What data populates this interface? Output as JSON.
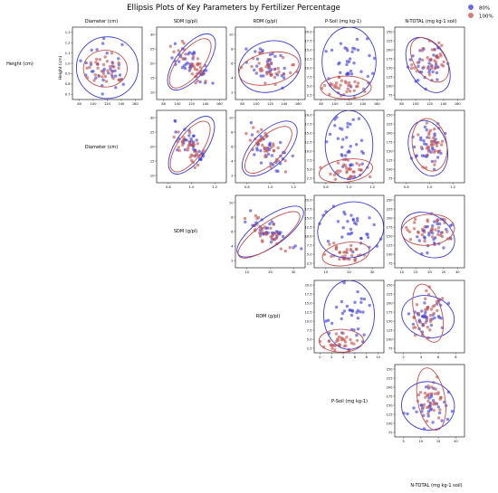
{
  "chart_data": {
    "type": "scatter",
    "title": "Ellipsis Plots of Key Parameters by Fertilizer Percentage",
    "variables": [
      "Height (cm)",
      "Diameter (cm)",
      "SDM (g/pl)",
      "RDM (g/pl)",
      "P-Soil (mg kg-1)",
      "N-TOTAL (mg kg-1 soil)"
    ],
    "legend": {
      "position": "top-right",
      "entries": [
        {
          "name": "80%",
          "color": "#3b3bd6"
        },
        {
          "name": "100%",
          "color": "#c0504d"
        }
      ]
    },
    "colors": {
      "80%": "#3b3bd6",
      "100%": "#c0504d"
    },
    "panels": [
      {
        "row": 0,
        "col": 1,
        "x": "Diameter (cm)",
        "y": "Height (cm)",
        "xlim": [
          0.6,
          1.3
        ],
        "ylim": [
          0.65,
          1.4
        ],
        "xticks": [
          "80",
          "100",
          "120",
          "140",
          "160"
        ],
        "yticks": [
          "0.7",
          "0.8",
          "0.9",
          "1.0",
          "1.1",
          "1.2",
          "1.3"
        ],
        "ellipses": [
          {
            "series": "80%",
            "cx": 0.95,
            "cy": 0.98,
            "rx": 0.31,
            "ry": 0.32,
            "rot": 0
          },
          {
            "series": "100%",
            "cx": 0.93,
            "cy": 0.97,
            "rx": 0.22,
            "ry": 0.19,
            "rot": 0
          }
        ]
      },
      {
        "row": 0,
        "col": 2,
        "x": "SDM (g/pl)",
        "y": "Height (cm)",
        "xlim": [
          5,
          32
        ],
        "ylim": [
          5,
          31
        ],
        "xticks": [
          "80",
          "100",
          "120",
          "140",
          "160"
        ],
        "yticks": [
          "10",
          "15",
          "20",
          "25",
          "30"
        ],
        "ellipses": [
          {
            "series": "80%",
            "cx": 18.5,
            "cy": 18.5,
            "rx": 13,
            "ry": 5.5,
            "rot": -52
          },
          {
            "series": "100%",
            "cx": 18,
            "cy": 18,
            "rx": 11.5,
            "ry": 4.5,
            "rot": -52
          }
        ]
      },
      {
        "row": 0,
        "col": 3,
        "x": "RDM (g/pl)",
        "y": "Height (cm)",
        "xlim": [
          0,
          11
        ],
        "ylim": [
          0,
          11
        ],
        "xticks": [
          "80",
          "100",
          "120",
          "140",
          "160"
        ],
        "yticks": [
          "2",
          "4",
          "6",
          "8",
          "10"
        ],
        "ellipses": [
          {
            "series": "80%",
            "cx": 5.4,
            "cy": 5.0,
            "rx": 5.0,
            "ry": 3.8,
            "rot": -20
          },
          {
            "series": "100%",
            "cx": 5.3,
            "cy": 4.7,
            "rx": 4.8,
            "ry": 2.4,
            "rot": -12
          }
        ]
      },
      {
        "row": 0,
        "col": 4,
        "x": "P-Soil (mg kg-1)",
        "y": "Height (cm)",
        "xlim": [
          0,
          22
        ],
        "ylim": [
          1,
          22
        ],
        "xticks": [
          "80",
          "100",
          "120",
          "140",
          "160"
        ],
        "yticks": [
          "2.5",
          "5.0",
          "7.5",
          "10.0",
          "12.5",
          "15.0",
          "17.5",
          "20.0"
        ],
        "ellipses": [
          {
            "series": "80%",
            "cx": 11,
            "cy": 12,
            "rx": 8.5,
            "ry": 10,
            "rot": 0
          },
          {
            "series": "100%",
            "cx": 10,
            "cy": 4.5,
            "rx": 8,
            "ry": 3.3,
            "rot": 0
          }
        ]
      },
      {
        "row": 0,
        "col": 5,
        "x": "N-TOTAL (mg kg-1 soil)",
        "y": "Height (cm)",
        "xlim": [
          60,
          270
        ],
        "ylim": [
          60,
          270
        ],
        "xticks": [
          "80",
          "100",
          "120",
          "140",
          "160"
        ],
        "yticks": [
          "75",
          "100",
          "125",
          "150",
          "175",
          "200",
          "225",
          "250"
        ],
        "ellipses": [
          {
            "series": "80%",
            "cx": 160,
            "cy": 160,
            "rx": 90,
            "ry": 55,
            "rot": 60
          },
          {
            "series": "100%",
            "cx": 165,
            "cy": 175,
            "rx": 75,
            "ry": 45,
            "rot": 55
          }
        ]
      },
      {
        "row": 1,
        "col": 2,
        "x": "SDM (g/pl)",
        "y": "Diameter (cm)",
        "xlim": [
          5,
          32
        ],
        "ylim": [
          5,
          31
        ],
        "xticks": [
          "0.8",
          "1.0",
          "1.2"
        ],
        "yticks": [
          "10",
          "15",
          "20",
          "25",
          "30"
        ],
        "ellipses": [
          {
            "series": "80%",
            "cx": 18.5,
            "cy": 18.5,
            "rx": 13,
            "ry": 5.5,
            "rot": -55
          },
          {
            "series": "100%",
            "cx": 18,
            "cy": 18,
            "rx": 11.5,
            "ry": 4.5,
            "rot": -55
          }
        ]
      },
      {
        "row": 1,
        "col": 3,
        "x": "RDM (g/pl)",
        "y": "Diameter (cm)",
        "xlim": [
          0,
          11
        ],
        "ylim": [
          0,
          11
        ],
        "xticks": [
          "0.8",
          "1.0",
          "1.2"
        ],
        "yticks": [
          "2",
          "4",
          "6",
          "8",
          "10"
        ],
        "ellipses": [
          {
            "series": "80%",
            "cx": 5.4,
            "cy": 5.2,
            "rx": 5.5,
            "ry": 2.6,
            "rot": -45
          },
          {
            "series": "100%",
            "cx": 5.2,
            "cy": 5.0,
            "rx": 4.8,
            "ry": 2.0,
            "rot": -45
          }
        ]
      },
      {
        "row": 1,
        "col": 4,
        "x": "P-Soil (mg kg-1)",
        "y": "Diameter (cm)",
        "xlim": [
          0,
          22
        ],
        "ylim": [
          1,
          22
        ],
        "xticks": [
          "0.8",
          "1.0",
          "1.2"
        ],
        "yticks": [
          "2.5",
          "5.0",
          "7.5",
          "10.0",
          "12.5",
          "15.0",
          "17.5",
          "20.0"
        ],
        "ellipses": [
          {
            "series": "80%",
            "cx": 11,
            "cy": 12,
            "rx": 7.5,
            "ry": 10,
            "rot": 0
          },
          {
            "series": "100%",
            "cx": 10,
            "cy": 4.5,
            "rx": 8.5,
            "ry": 3.3,
            "rot": -8
          }
        ]
      },
      {
        "row": 1,
        "col": 5,
        "x": "N-TOTAL (mg kg-1 soil)",
        "y": "Diameter (cm)",
        "xlim": [
          60,
          270
        ],
        "ylim": [
          60,
          270
        ],
        "xticks": [
          "0.8",
          "1.0",
          "1.2"
        ],
        "yticks": [
          "75",
          "100",
          "125",
          "150",
          "175",
          "200",
          "225",
          "250"
        ],
        "ellipses": [
          {
            "series": "80%",
            "cx": 160,
            "cy": 160,
            "rx": 85,
            "ry": 55,
            "rot": 75
          },
          {
            "series": "100%",
            "cx": 165,
            "cy": 170,
            "rx": 80,
            "ry": 50,
            "rot": 80
          }
        ]
      },
      {
        "row": 2,
        "col": 3,
        "x": "RDM (g/pl)",
        "y": "SDM (g/pl)",
        "xlim": [
          0,
          11
        ],
        "ylim": [
          0,
          11
        ],
        "xticks": [
          "10",
          "20",
          "30"
        ],
        "yticks": [
          "2",
          "4",
          "6",
          "8",
          "10"
        ],
        "ellipses": [
          {
            "series": "80%",
            "cx": 5.5,
            "cy": 5.5,
            "rx": 6.2,
            "ry": 2.2,
            "rot": -35
          },
          {
            "series": "100%",
            "cx": 5.3,
            "cy": 5.0,
            "rx": 5.8,
            "ry": 1.8,
            "rot": -35
          }
        ]
      },
      {
        "row": 2,
        "col": 4,
        "x": "P-Soil (mg kg-1)",
        "y": "SDM (g/pl)",
        "xlim": [
          0,
          22
        ],
        "ylim": [
          1,
          22
        ],
        "xticks": [
          "10",
          "20",
          "30"
        ],
        "yticks": [
          "2.5",
          "5.0",
          "7.5",
          "10.0",
          "12.5",
          "15.0",
          "17.5",
          "20.0"
        ],
        "ellipses": [
          {
            "series": "80%",
            "cx": 11.5,
            "cy": 12,
            "rx": 10.5,
            "ry": 8,
            "rot": -15
          },
          {
            "series": "100%",
            "cx": 10,
            "cy": 5,
            "rx": 7.5,
            "ry": 3.3,
            "rot": -10
          }
        ]
      },
      {
        "row": 2,
        "col": 5,
        "x": "N-TOTAL (mg kg-1 soil)",
        "y": "SDM (g/pl)",
        "xlim": [
          60,
          270
        ],
        "ylim": [
          60,
          270
        ],
        "xticks": [
          "10",
          "15",
          "20",
          "25",
          "30"
        ],
        "yticks": [
          "75",
          "100",
          "125",
          "150",
          "175",
          "200",
          "225",
          "250"
        ],
        "ellipses": [
          {
            "series": "80%",
            "cx": 160,
            "cy": 155,
            "rx": 85,
            "ry": 60,
            "rot": 30
          },
          {
            "series": "100%",
            "cx": 160,
            "cy": 170,
            "rx": 80,
            "ry": 45,
            "rot": -5
          }
        ]
      },
      {
        "row": 3,
        "col": 4,
        "x": "P-Soil (mg kg-1)",
        "y": "RDM (g/pl)",
        "xlim": [
          0,
          22
        ],
        "ylim": [
          1,
          22
        ],
        "xticks": [
          "0",
          "2",
          "4",
          "6",
          "8",
          "10"
        ],
        "yticks": [
          "2.5",
          "5.0",
          "7.5",
          "10.0",
          "12.5",
          "15.0",
          "17.5",
          "20.0"
        ],
        "ellipses": [
          {
            "series": "80%",
            "cx": 11,
            "cy": 12,
            "rx": 8,
            "ry": 10,
            "rot": 0
          },
          {
            "series": "100%",
            "cx": 8.5,
            "cy": 4.5,
            "rx": 7,
            "ry": 3.3,
            "rot": 0
          }
        ]
      },
      {
        "row": 3,
        "col": 5,
        "x": "N-TOTAL (mg kg-1 soil)",
        "y": "RDM (g/pl)",
        "xlim": [
          60,
          270
        ],
        "ylim": [
          60,
          270
        ],
        "xticks": [
          "2",
          "4",
          "6",
          "8"
        ],
        "yticks": [
          "75",
          "100",
          "125",
          "150",
          "175",
          "200",
          "225",
          "250"
        ],
        "ellipses": [
          {
            "series": "80%",
            "cx": 160,
            "cy": 165,
            "rx": 80,
            "ry": 60,
            "rot": 15
          },
          {
            "series": "100%",
            "cx": 160,
            "cy": 175,
            "rx": 90,
            "ry": 40,
            "rot": 75
          }
        ]
      },
      {
        "row": 4,
        "col": 5,
        "x": "N-TOTAL (mg kg-1 soil)",
        "y": "P-Soil (mg kg-1)",
        "xlim": [
          60,
          270
        ],
        "ylim": [
          60,
          270
        ],
        "xticks": [
          "5",
          "10",
          "15",
          "20"
        ],
        "yticks": [
          "75",
          "100",
          "125",
          "150",
          "175",
          "200",
          "225",
          "250"
        ],
        "ellipses": [
          {
            "series": "80%",
            "cx": 160,
            "cy": 150,
            "rx": 80,
            "ry": 70,
            "rot": 10
          },
          {
            "series": "100%",
            "cx": 170,
            "cy": 170,
            "rx": 95,
            "ry": 40,
            "rot": 80
          }
        ]
      }
    ]
  }
}
